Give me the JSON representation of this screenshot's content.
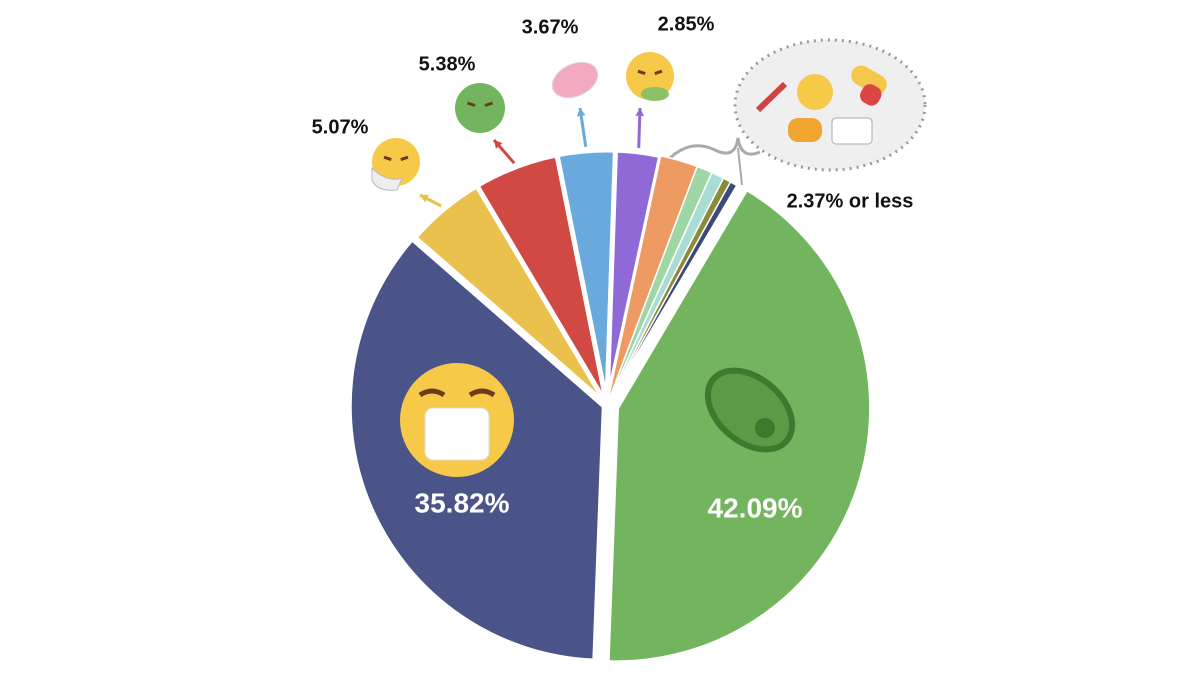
{
  "chart_data": {
    "type": "pie",
    "categories": [
      null,
      null,
      null,
      null,
      null,
      null,
      null,
      null,
      null,
      null,
      null
    ],
    "values": [
      42.09,
      35.82,
      5.07,
      5.38,
      3.67,
      2.85,
      2.37,
      1.0,
      0.8,
      0.5,
      0.45
    ],
    "value_labels": [
      "42.09%",
      "35.82%",
      "5.07%",
      "5.38%",
      "3.67%",
      "2.85%",
      "2.37% or less",
      null,
      null,
      null,
      null
    ],
    "colors": [
      "#72b55e",
      "#4a5488",
      "#e9c14c",
      "#d04a43",
      "#6aa9dc",
      "#8f6ad6",
      "#ee9b63",
      "#9fd6a6",
      "#a9dcd2",
      "#8b8a3a",
      "#3b4a7a"
    ]
  }
}
